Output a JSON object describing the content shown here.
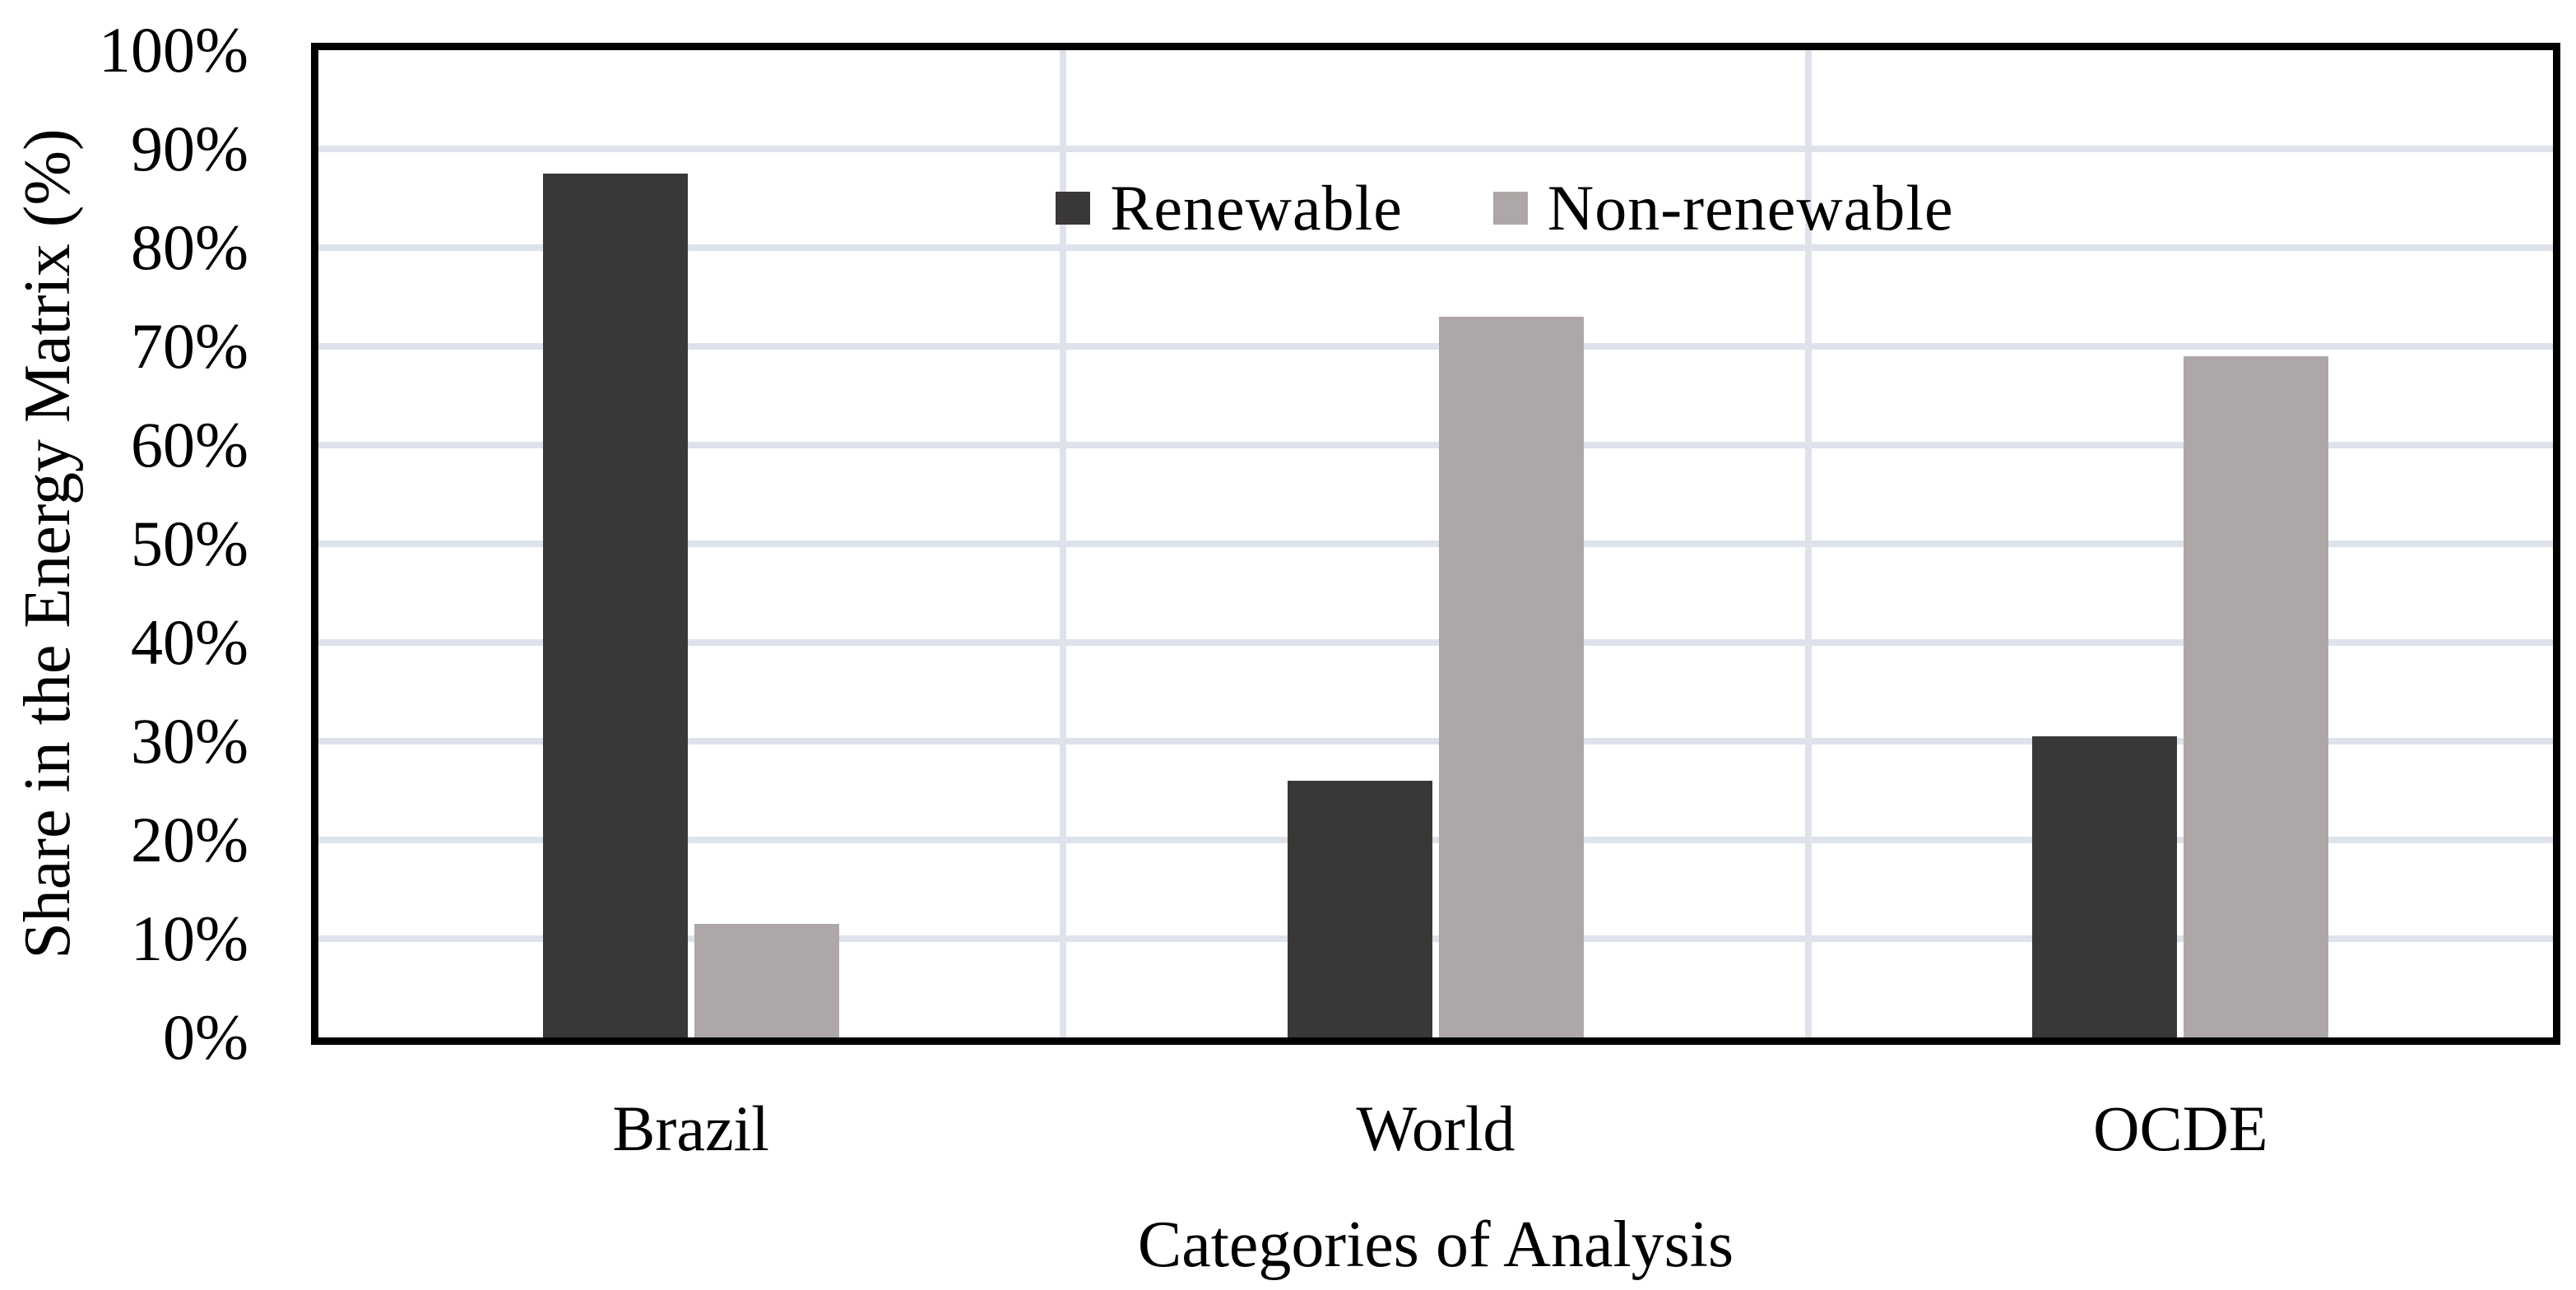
{
  "chart_data": {
    "type": "bar",
    "title": "",
    "categories": [
      "Brazil",
      "World",
      "OCDE"
    ],
    "series": [
      {
        "name": "Renewable",
        "color": "#3a3737",
        "values": [
          87.5,
          26.0,
          30.5
        ]
      },
      {
        "name": "Non-renewable",
        "color": "#ada8a7",
        "values": [
          11.5,
          73.0,
          69.0
        ]
      }
    ],
    "xlabel": "Categories of Analysis",
    "ylabel": "Share in the Energy Matrix (%)",
    "ylim": [
      0,
      100
    ],
    "ytick_step": 10,
    "ytick_labels": [
      "0%",
      "10%",
      "20%",
      "30%",
      "40%",
      "50%",
      "60%",
      "70%",
      "80%",
      "90%",
      "100%"
    ],
    "grid": {
      "horizontal": true,
      "vertical_category_boundaries": true,
      "color": "#dee2eb"
    },
    "plot_border_color": "#000000",
    "background": "#ffffff",
    "legend_position": "top-center-inside"
  }
}
